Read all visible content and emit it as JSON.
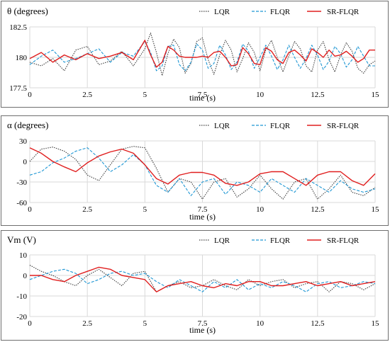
{
  "chart_data": [
    {
      "type": "line",
      "title": "",
      "ylabel": "θ (degrees)",
      "xlabel": "time (s)",
      "xlim": [
        0,
        15
      ],
      "ylim": [
        177.5,
        182.5
      ],
      "xticks": [
        0,
        2.5,
        5,
        7.5,
        10,
        12.5,
        15
      ],
      "xtick_labels": [
        "0",
        "2.5",
        "5",
        "7.5",
        "10",
        "12.5",
        "15"
      ],
      "yticks": [
        177.5,
        180,
        182.5
      ],
      "ytick_labels": [
        "177.5",
        "180",
        "182.5"
      ],
      "grid": true,
      "legend_position": "top-right",
      "series": [
        {
          "name": "LQR",
          "color": "#404040",
          "style": "dotted",
          "x": [
            0,
            0.5,
            1,
            1.5,
            2,
            2.5,
            3,
            3.5,
            4,
            4.5,
            5,
            5.25,
            5.5,
            5.75,
            6,
            6.25,
            6.5,
            6.75,
            7,
            7.25,
            7.5,
            7.75,
            8,
            8.25,
            8.5,
            8.75,
            9,
            9.25,
            9.5,
            9.75,
            10,
            10.25,
            10.5,
            10.75,
            11,
            11.25,
            11.5,
            11.75,
            12,
            12.25,
            12.5,
            12.75,
            13,
            13.25,
            13.5,
            13.75,
            14,
            14.25,
            14.5,
            14.75,
            15
          ],
          "y": [
            179.6,
            179.3,
            179.9,
            178.9,
            180.6,
            180.9,
            179.4,
            179.7,
            180.5,
            179.3,
            180.7,
            182.0,
            180.4,
            178.5,
            180.3,
            181.5,
            180.8,
            178.7,
            179.5,
            181.3,
            181.6,
            179.8,
            178.6,
            180.2,
            181.4,
            180.6,
            178.8,
            179.9,
            181.2,
            180.4,
            178.9,
            180.6,
            181.4,
            180.0,
            178.8,
            180.1,
            181.3,
            180.7,
            179.3,
            178.8,
            180.6,
            181.3,
            179.8,
            178.8,
            180.2,
            181.2,
            180.5,
            179.1,
            178.7,
            179.4,
            179.7
          ]
        },
        {
          "name": "FLQR",
          "color": "#1f97d4",
          "style": "dashed",
          "x": [
            0,
            0.5,
            1,
            1.5,
            2,
            2.5,
            3,
            3.5,
            4,
            4.5,
            5,
            5.25,
            5.5,
            5.75,
            6,
            6.25,
            6.5,
            6.75,
            7,
            7.25,
            7.5,
            7.75,
            8,
            8.25,
            8.5,
            8.75,
            9,
            9.25,
            9.5,
            9.75,
            10,
            10.25,
            10.5,
            10.75,
            11,
            11.25,
            11.5,
            11.75,
            12,
            12.25,
            12.5,
            12.75,
            13,
            13.25,
            13.5,
            13.75,
            14,
            14.25,
            14.5,
            14.75,
            15
          ],
          "y": [
            179.4,
            180.1,
            180.6,
            179.6,
            179.9,
            180.3,
            180.7,
            179.6,
            180.4,
            180.1,
            181.3,
            180.4,
            178.9,
            179.3,
            180.9,
            181.0,
            179.4,
            178.9,
            179.6,
            181.1,
            180.6,
            179.1,
            179.5,
            181.0,
            180.2,
            179.0,
            179.6,
            181.1,
            180.5,
            179.1,
            180.0,
            181.0,
            180.1,
            179.0,
            179.8,
            181.0,
            180.0,
            179.1,
            179.9,
            181.0,
            180.2,
            179.0,
            179.7,
            180.9,
            180.3,
            179.2,
            179.8,
            180.9,
            180.1,
            179.3,
            179.3
          ]
        },
        {
          "name": "SR-FLQR",
          "color": "#e01e1e",
          "style": "solid",
          "x": [
            0,
            0.5,
            1,
            1.5,
            2,
            2.5,
            3,
            3.5,
            4,
            4.5,
            5,
            5.25,
            5.5,
            5.75,
            6,
            6.25,
            6.5,
            6.75,
            7,
            7.25,
            7.5,
            7.75,
            8,
            8.25,
            8.5,
            8.75,
            9,
            9.25,
            9.5,
            9.75,
            10,
            10.25,
            10.5,
            10.75,
            11,
            11.25,
            11.5,
            11.75,
            12,
            12.25,
            12.5,
            12.75,
            13,
            13.25,
            13.5,
            13.75,
            14,
            14.25,
            14.5,
            14.75,
            15
          ],
          "y": [
            179.9,
            180.4,
            179.6,
            180.2,
            179.8,
            180.3,
            179.9,
            180.1,
            180.4,
            179.8,
            181.4,
            180.2,
            179.2,
            179.6,
            180.9,
            180.6,
            180.1,
            180.0,
            180.0,
            180.0,
            180.1,
            180.0,
            180.4,
            180.5,
            180.0,
            179.3,
            179.4,
            180.8,
            180.3,
            179.5,
            179.4,
            180.8,
            180.5,
            179.8,
            179.5,
            180.4,
            180.6,
            180.2,
            179.7,
            180.7,
            180.4,
            180.0,
            180.6,
            180.1,
            180.2,
            180.5,
            180.1,
            179.6,
            179.9,
            180.6,
            180.6
          ]
        }
      ]
    },
    {
      "type": "line",
      "title": "",
      "ylabel": "α (degrees)",
      "xlabel": "time (s)",
      "xlim": [
        0,
        15
      ],
      "ylim": [
        -60,
        30
      ],
      "xticks": [
        0,
        2.5,
        5,
        7.5,
        10,
        12.5,
        15
      ],
      "xtick_labels": [
        "0",
        "2.5",
        "5",
        "7.5",
        "10",
        "12.5",
        "15"
      ],
      "yticks": [
        -60,
        -30,
        0,
        30
      ],
      "ytick_labels": [
        "-60",
        "-30",
        "0",
        "30"
      ],
      "grid": true,
      "legend_position": "top-right",
      "series": [
        {
          "name": "LQR",
          "color": "#404040",
          "style": "dotted",
          "x": [
            0,
            0.5,
            1,
            1.5,
            2,
            2.5,
            3,
            3.5,
            4,
            4.5,
            5,
            5.5,
            6,
            6.5,
            7,
            7.5,
            8,
            8.5,
            9,
            9.5,
            10,
            10.5,
            11,
            11.5,
            12,
            12.5,
            13,
            13.5,
            14,
            14.5,
            15
          ],
          "y": [
            0,
            18,
            21,
            15,
            3,
            -20,
            -28,
            -5,
            18,
            22,
            20,
            -10,
            -45,
            -25,
            -30,
            -55,
            -30,
            -25,
            -52,
            -40,
            -20,
            -40,
            -55,
            -30,
            -25,
            -55,
            -40,
            -20,
            -45,
            -50,
            -38
          ]
        },
        {
          "name": "FLQR",
          "color": "#1f97d4",
          "style": "dashed",
          "x": [
            0,
            0.5,
            1,
            1.5,
            2,
            2.5,
            3,
            3.5,
            4,
            4.5,
            5,
            5.5,
            6,
            6.5,
            7,
            7.5,
            8,
            8.5,
            9,
            9.5,
            10,
            10.5,
            11,
            11.5,
            12,
            12.5,
            13,
            13.5,
            14,
            14.5,
            15
          ],
          "y": [
            -20,
            -15,
            -2,
            5,
            15,
            20,
            5,
            -15,
            -5,
            10,
            -5,
            -35,
            -45,
            -25,
            -50,
            -30,
            -25,
            -48,
            -30,
            -35,
            -45,
            -25,
            -35,
            -45,
            -25,
            -35,
            -45,
            -28,
            -40,
            -45,
            -40
          ]
        },
        {
          "name": "SR-FLQR",
          "color": "#e01e1e",
          "style": "solid",
          "x": [
            0,
            0.5,
            1,
            1.5,
            2,
            2.5,
            3,
            3.5,
            4,
            4.5,
            5,
            5.5,
            6,
            6.5,
            7,
            7.5,
            8,
            8.5,
            9,
            9.5,
            10,
            10.5,
            11,
            11.5,
            12,
            12.5,
            13,
            13.5,
            14,
            14.5,
            15
          ],
          "y": [
            20,
            12,
            0,
            -8,
            -15,
            -2,
            8,
            14,
            18,
            12,
            -5,
            -25,
            -33,
            -20,
            -16,
            -16,
            -20,
            -32,
            -35,
            -30,
            -18,
            -15,
            -15,
            -25,
            -35,
            -20,
            -15,
            -15,
            -28,
            -35,
            -18
          ]
        }
      ]
    },
    {
      "type": "line",
      "title": "",
      "ylabel": "Vm (V)",
      "xlabel": "time (s)",
      "xlim": [
        0,
        15
      ],
      "ylim": [
        -20,
        10
      ],
      "xticks": [
        0,
        2.5,
        5,
        7.5,
        10,
        12.5,
        15
      ],
      "xtick_labels": [
        "0",
        "2.5",
        "5",
        "7.5",
        "10",
        "12.5",
        "15"
      ],
      "yticks": [
        -20,
        -10,
        0,
        10
      ],
      "ytick_labels": [
        "-20",
        "-10",
        "0",
        "10"
      ],
      "grid": true,
      "legend_position": "top-right",
      "series": [
        {
          "name": "LQR",
          "color": "#404040",
          "style": "dotted",
          "x": [
            0,
            0.5,
            1,
            1.5,
            2,
            2.5,
            3,
            3.5,
            4,
            4.5,
            5,
            5.5,
            6,
            6.5,
            7,
            7.5,
            8,
            8.5,
            9,
            9.5,
            10,
            10.5,
            11,
            11.5,
            12,
            12.5,
            13,
            13.5,
            14,
            14.5,
            15
          ],
          "y": [
            5,
            2,
            0,
            -3,
            -5,
            0,
            3,
            -1,
            -5,
            1,
            2,
            -8,
            -5,
            -3,
            -6,
            -5,
            -2,
            -5,
            -7,
            -2,
            -5,
            -3,
            -2,
            -6,
            -4,
            -3,
            -8,
            -3,
            -4,
            -7,
            -4
          ]
        },
        {
          "name": "FLQR",
          "color": "#1f97d4",
          "style": "dashed",
          "x": [
            0,
            0.5,
            1,
            1.5,
            2,
            2.5,
            3,
            3.5,
            4,
            4.5,
            5,
            5.5,
            6,
            6.5,
            7,
            7.5,
            8,
            8.5,
            9,
            9.5,
            10,
            10.5,
            11,
            11.5,
            12,
            12.5,
            13,
            13.5,
            14,
            14.5,
            15
          ],
          "y": [
            -2,
            0,
            2,
            3,
            1,
            -4,
            -2,
            1,
            2,
            0,
            1,
            -3,
            -6,
            -2,
            -5,
            -8,
            -3,
            -6,
            -2,
            -7,
            -4,
            -6,
            -3,
            -5,
            -8,
            -4,
            -3,
            -6,
            -5,
            -3,
            -4
          ]
        },
        {
          "name": "SR-FLQR",
          "color": "#e01e1e",
          "style": "solid",
          "x": [
            0,
            0.5,
            1,
            1.5,
            2,
            2.5,
            3,
            3.5,
            4,
            4.5,
            5,
            5.5,
            6,
            6.5,
            7,
            7.5,
            8,
            8.5,
            9,
            9.5,
            10,
            10.5,
            11,
            11.5,
            12,
            12.5,
            13,
            13.5,
            14,
            14.5,
            15
          ],
          "y": [
            0,
            0,
            -2,
            -3,
            0,
            2,
            4,
            3,
            0,
            -1,
            -2,
            -8,
            -5,
            -4,
            -3,
            -5,
            -6,
            -4,
            -5,
            -3,
            -3,
            -5,
            -5,
            -4,
            -3,
            -5,
            -4,
            -3,
            -5,
            -4,
            -3
          ]
        }
      ]
    }
  ]
}
